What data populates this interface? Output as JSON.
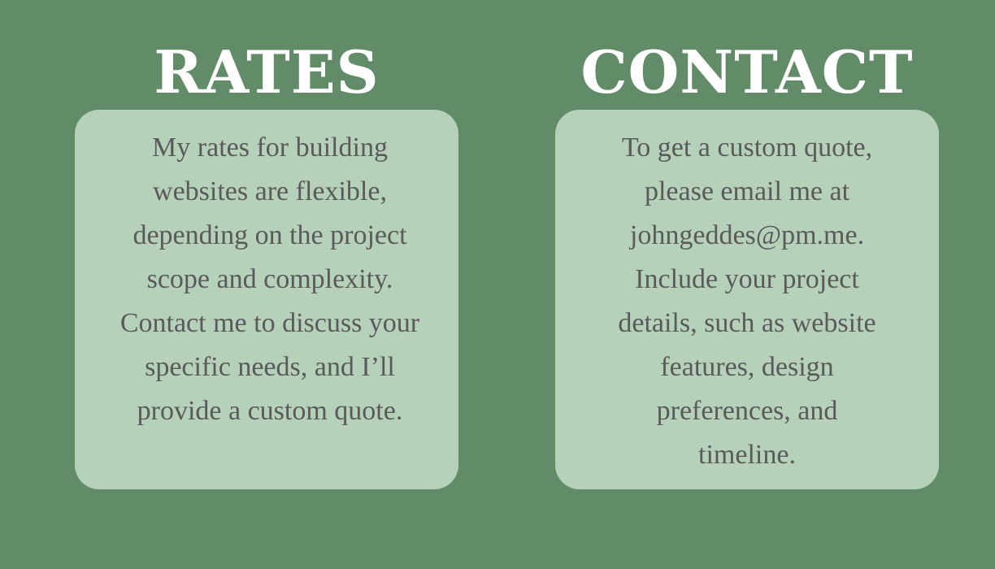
{
  "rates": {
    "title": "RATES",
    "body": "My rates for building websites are flexible, depending on the project scope and complexity. Contact me to discuss your specific needs, and I’ll provide a custom quote."
  },
  "contact": {
    "title": "CONTACT",
    "body": "To get a custom quote, please email me at johngeddes@pm.me. Include your project details, such as website features, design preferences, and timeline."
  },
  "colors": {
    "background": "#618c67",
    "card": "#b5d1ba",
    "title": "#ffffff",
    "body_text": "#5a5a5a"
  }
}
